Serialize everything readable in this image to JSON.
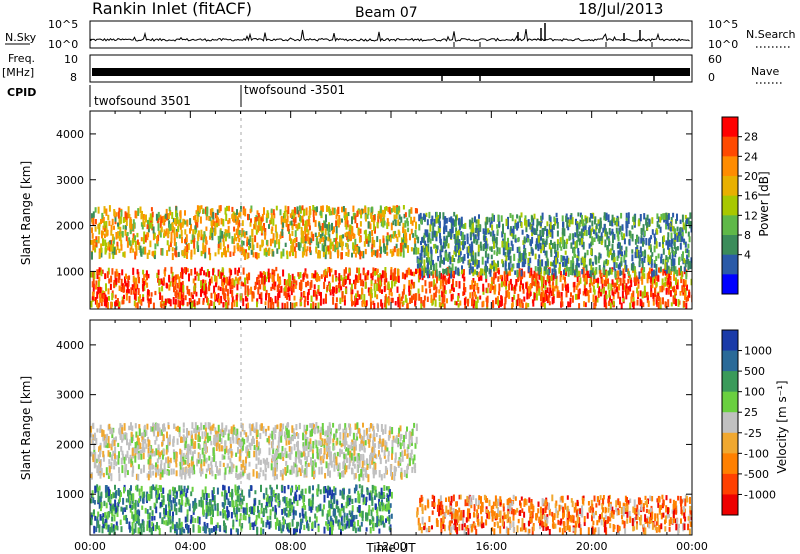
{
  "header": {
    "station": "Rankin Inlet (fitACF)",
    "beam": "Beam 07",
    "date": "18/Jul/2013"
  },
  "status_panels": {
    "nsky_label": "N.Sky",
    "nsky_ticks": [
      "10^5",
      "10^0"
    ],
    "nsearch_label": "N.Search",
    "nsearch_ticks": [
      "10^5",
      "10^0"
    ],
    "freq_label_top": "Freq.",
    "freq_label_unit": "[MHz]",
    "freq_ticks": [
      "10",
      "8"
    ],
    "nave_label": "Nave",
    "nave_ticks": [
      "60",
      "0"
    ],
    "cpid_label": "CPID",
    "cpid_segments": [
      {
        "label": "twofsound 3501",
        "start_hour": 0
      },
      {
        "label": "twofsound -3501",
        "start_hour": 6
      }
    ]
  },
  "chart_data": [
    {
      "type": "heatmap",
      "title": "",
      "xlabel": "",
      "ylabel": "Slant Range [km]",
      "xlim": [
        0,
        24
      ],
      "ylim": [
        180,
        4500
      ],
      "yticks": [
        1000,
        2000,
        3000,
        4000
      ],
      "colorbar": {
        "label": "Power [dB]",
        "ticks": [
          "28",
          "24",
          "20",
          "16",
          "12",
          "8",
          "4"
        ],
        "colors": [
          "#ff0000",
          "#ff4a00",
          "#ff8c00",
          "#e8b000",
          "#a8c800",
          "#5fb848",
          "#3b8c5a",
          "#2a5aa8",
          "#0000ff"
        ]
      },
      "features": [
        {
          "x": [
            0,
            13
          ],
          "range_km": [
            1400,
            2450
          ],
          "level": "12-28 dB"
        },
        {
          "x": [
            0,
            24
          ],
          "range_km": [
            300,
            1100
          ],
          "level": "16-28 dB"
        },
        {
          "x": [
            13,
            24
          ],
          "range_km": [
            1000,
            2300
          ],
          "level": "4-16 dB"
        }
      ]
    },
    {
      "type": "heatmap",
      "title": "",
      "xlabel": "Time UT",
      "ylabel": "Slant Range [km]",
      "xlim": [
        0,
        24
      ],
      "ylim": [
        180,
        4500
      ],
      "yticks": [
        1000,
        2000,
        3000,
        4000
      ],
      "xticks": [
        "00:00",
        "04:00",
        "08:00",
        "12:00",
        "16:00",
        "20:00",
        "00:00"
      ],
      "colorbar": {
        "label": "Velocity [m s⁻¹]",
        "ticks": [
          "1000",
          "500",
          "100",
          "25",
          "-25",
          "-100",
          "-500",
          "-1000"
        ],
        "colors": [
          "#1a3aa8",
          "#2a6a98",
          "#3a9a5a",
          "#6ad040",
          "#c0c0c0",
          "#f0a830",
          "#ff8000",
          "#ff4000",
          "#ee0000"
        ]
      },
      "features": [
        {
          "x": [
            0,
            13
          ],
          "range_km": [
            1400,
            2450
          ],
          "level": "-25 to 25 m/s"
        },
        {
          "x": [
            0,
            12
          ],
          "range_km": [
            300,
            1200
          ],
          "level": "25 to 1000 m/s"
        },
        {
          "x": [
            13,
            24
          ],
          "range_km": [
            300,
            1000
          ],
          "level": "-100 to -1000 m/s"
        }
      ]
    }
  ]
}
